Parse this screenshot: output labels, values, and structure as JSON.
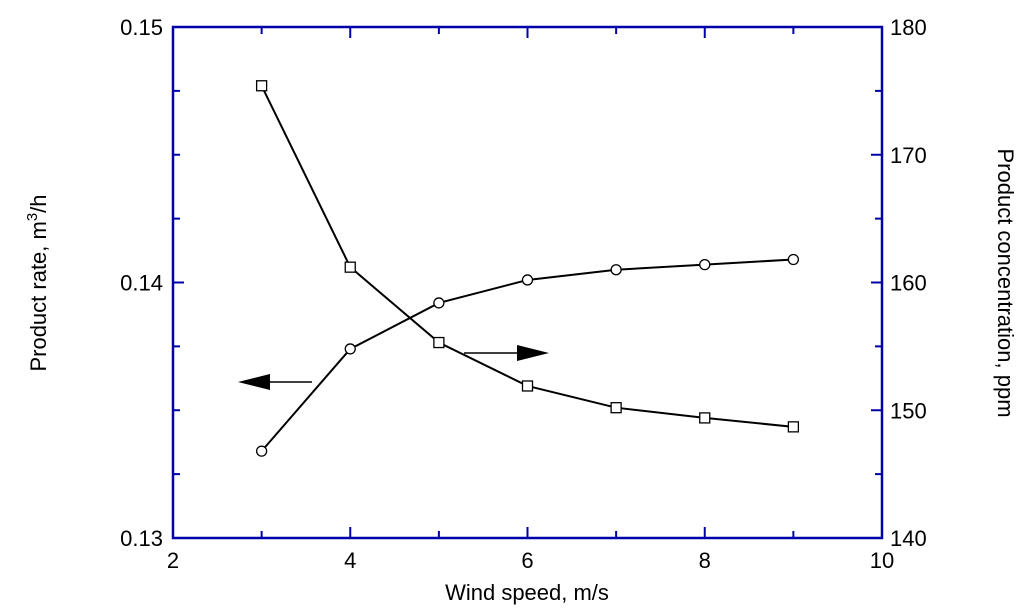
{
  "chart_data": {
    "type": "line",
    "xlabel": "Wind speed, m/s",
    "ylabel_left_base": "Product rate, m",
    "ylabel_left_sup": "3",
    "ylabel_left_tail": "/h",
    "ylabel_right": "Product concentration, ppm",
    "xlim": [
      2,
      10
    ],
    "ylim_left": [
      0.13,
      0.15
    ],
    "ylim_right": [
      140,
      180
    ],
    "x_ticks": [
      2,
      4,
      6,
      8,
      10
    ],
    "x_tick_labels": [
      "2",
      "4",
      "6",
      "8",
      "10"
    ],
    "y_left_ticks": [
      0.13,
      0.14,
      0.15
    ],
    "y_left_tick_labels": [
      "0.13",
      "0.14",
      "0.15"
    ],
    "y_right_ticks": [
      140,
      150,
      160,
      170,
      180
    ],
    "y_right_tick_labels": [
      "140",
      "150",
      "160",
      "170",
      "180"
    ],
    "grid": false,
    "frame_color": "#0000aa",
    "series": [
      {
        "axis": "left",
        "marker": "circle",
        "x": [
          3,
          4,
          5,
          6,
          7,
          8,
          9
        ],
        "values": [
          0.1334,
          0.1374,
          0.1392,
          0.1401,
          0.1405,
          0.1407,
          0.1409
        ]
      },
      {
        "axis": "right",
        "marker": "square",
        "x": [
          3,
          4,
          5,
          6,
          7,
          8,
          9
        ],
        "values": [
          175.4,
          161.2,
          155.3,
          151.9,
          150.2,
          149.4,
          148.7
        ]
      }
    ],
    "annotations": [
      {
        "type": "arrow",
        "direction": "left",
        "points_to": "left axis"
      },
      {
        "type": "arrow",
        "direction": "right",
        "points_to": "right axis"
      }
    ]
  }
}
